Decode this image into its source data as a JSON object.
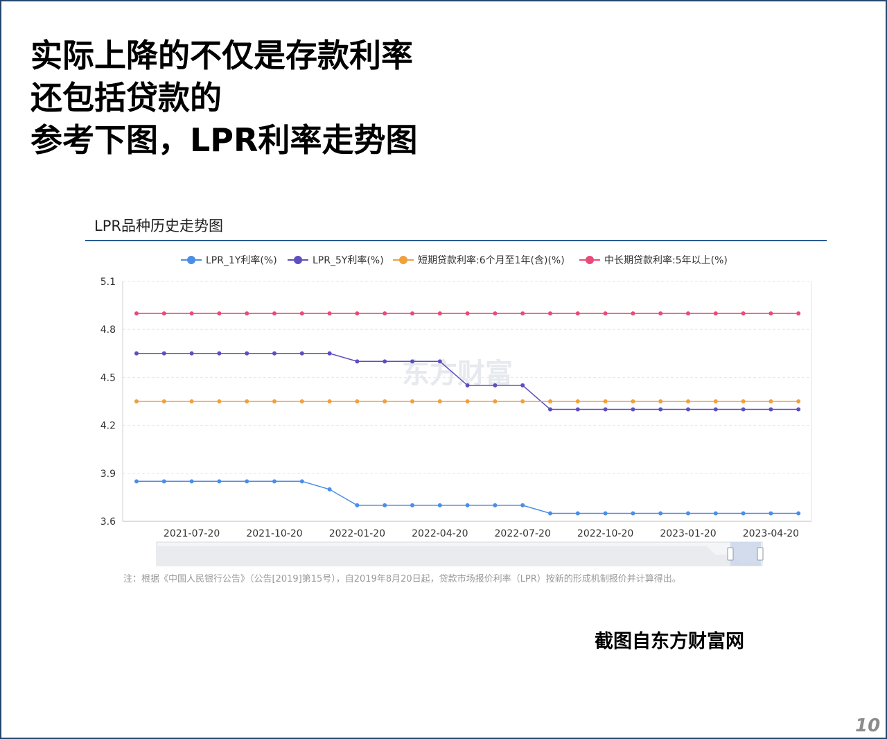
{
  "slide": {
    "headline": [
      "实际上降的不仅是存款利率",
      "还包括贷款的",
      "参考下图，LPR利率走势图"
    ],
    "source": "截图自东方财富网",
    "page_number": "10"
  },
  "chart_header": {
    "title": "LPR品种历史走势图",
    "watermark": "东方财富",
    "note": "注：根据《中国人民银行公告》（公告[2019]第15号），自2019年8月20日起，贷款市场报价利率（LPR）按新的形成机制报价并计算得出。"
  },
  "chart_data": {
    "type": "line",
    "title": "LPR品种历史走势图",
    "xlabel": "",
    "ylabel": "",
    "ylim": [
      3.6,
      5.1
    ],
    "yticks": [
      "5.1",
      "4.8",
      "4.5",
      "4.2",
      "3.9",
      "3.6"
    ],
    "xticks": [
      "2021-07-20",
      "2021-10-20",
      "2022-01-20",
      "2022-04-20",
      "2022-07-20",
      "2022-10-20",
      "2023-01-20",
      "2023-04-20"
    ],
    "x": [
      "2021-05-20",
      "2021-06-20",
      "2021-07-20",
      "2021-08-20",
      "2021-09-20",
      "2021-10-20",
      "2021-11-20",
      "2021-12-20",
      "2022-01-20",
      "2022-02-20",
      "2022-03-20",
      "2022-04-20",
      "2022-05-20",
      "2022-06-20",
      "2022-07-20",
      "2022-08-20",
      "2022-09-20",
      "2022-10-20",
      "2022-11-20",
      "2022-12-20",
      "2023-01-20",
      "2023-02-20",
      "2023-03-20",
      "2023-04-20",
      "2023-05-20"
    ],
    "grid": true,
    "legend_position": "top",
    "series": [
      {
        "name": "LPR_1Y利率(%)",
        "color": "#4a8ee8",
        "values": [
          3.85,
          3.85,
          3.85,
          3.85,
          3.85,
          3.85,
          3.85,
          3.8,
          3.7,
          3.7,
          3.7,
          3.7,
          3.7,
          3.7,
          3.7,
          3.65,
          3.65,
          3.65,
          3.65,
          3.65,
          3.65,
          3.65,
          3.65,
          3.65,
          3.65
        ]
      },
      {
        "name": "LPR_5Y利率(%)",
        "color": "#5c4fbf",
        "values": [
          4.65,
          4.65,
          4.65,
          4.65,
          4.65,
          4.65,
          4.65,
          4.65,
          4.6,
          4.6,
          4.6,
          4.6,
          4.45,
          4.45,
          4.45,
          4.3,
          4.3,
          4.3,
          4.3,
          4.3,
          4.3,
          4.3,
          4.3,
          4.3,
          4.3
        ]
      },
      {
        "name": "短期贷款利率:6个月至1年(含)(%)",
        "color": "#f0a03c",
        "values": [
          4.35,
          4.35,
          4.35,
          4.35,
          4.35,
          4.35,
          4.35,
          4.35,
          4.35,
          4.35,
          4.35,
          4.35,
          4.35,
          4.35,
          4.35,
          4.35,
          4.35,
          4.35,
          4.35,
          4.35,
          4.35,
          4.35,
          4.35,
          4.35,
          4.35
        ]
      },
      {
        "name": "中长期贷款利率:5年以上(%)",
        "color": "#e84b78",
        "values": [
          4.9,
          4.9,
          4.9,
          4.9,
          4.9,
          4.9,
          4.9,
          4.9,
          4.9,
          4.9,
          4.9,
          4.9,
          4.9,
          4.9,
          4.9,
          4.9,
          4.9,
          4.9,
          4.9,
          4.9,
          4.9,
          4.9,
          4.9,
          4.9,
          4.9
        ]
      }
    ]
  }
}
